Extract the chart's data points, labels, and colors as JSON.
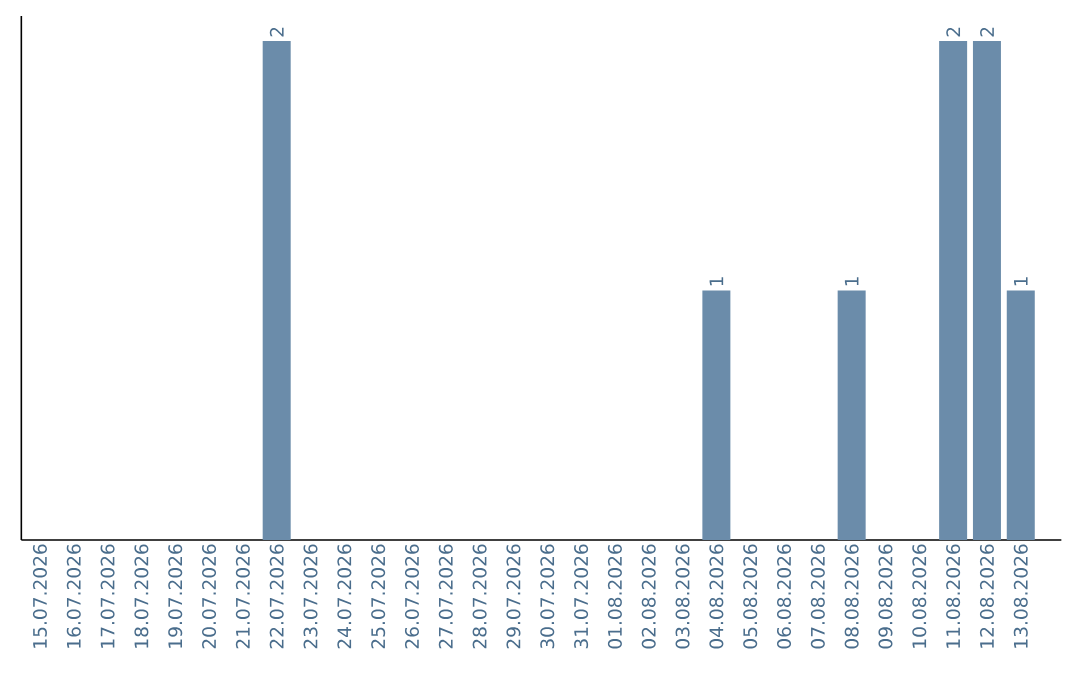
{
  "chart_data": {
    "type": "bar",
    "categories": [
      "15.07.2026",
      "16.07.2026",
      "17.07.2026",
      "18.07.2026",
      "19.07.2026",
      "20.07.2026",
      "21.07.2026",
      "22.07.2026",
      "23.07.2026",
      "24.07.2026",
      "25.07.2026",
      "26.07.2026",
      "27.07.2026",
      "28.07.2026",
      "29.07.2026",
      "30.07.2026",
      "31.07.2026",
      "01.08.2026",
      "02.08.2026",
      "03.08.2026",
      "04.08.2026",
      "05.08.2026",
      "06.08.2026",
      "07.08.2026",
      "08.08.2026",
      "09.08.2026",
      "10.08.2026",
      "11.08.2026",
      "12.08.2026",
      "13.08.2026"
    ],
    "values": [
      0,
      0,
      0,
      0,
      0,
      0,
      0,
      2,
      0,
      0,
      0,
      0,
      0,
      0,
      0,
      0,
      0,
      0,
      0,
      0,
      1,
      0,
      0,
      0,
      1,
      0,
      0,
      2,
      2,
      1
    ],
    "value_labels": [
      null,
      null,
      null,
      null,
      null,
      null,
      null,
      "2",
      null,
      null,
      null,
      null,
      null,
      null,
      null,
      null,
      null,
      null,
      null,
      null,
      "1",
      null,
      null,
      null,
      "1",
      null,
      null,
      "2",
      "2",
      "1"
    ],
    "color": "#6b8caa"
  }
}
